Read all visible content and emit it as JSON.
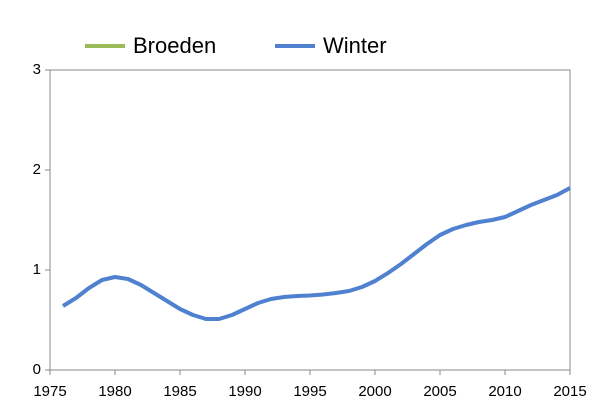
{
  "chart_data": {
    "type": "line",
    "x": [
      1976,
      1977,
      1978,
      1979,
      1980,
      1981,
      1982,
      1983,
      1984,
      1985,
      1986,
      1987,
      1988,
      1989,
      1990,
      1991,
      1992,
      1993,
      1994,
      1995,
      1996,
      1997,
      1998,
      1999,
      2000,
      2001,
      2002,
      2003,
      2004,
      2005,
      2006,
      2007,
      2008,
      2009,
      2010,
      2011,
      2012,
      2013,
      2014,
      2015
    ],
    "series": [
      {
        "name": "Broeden",
        "color": "#9bbb59",
        "values": [
          null,
          null,
          null,
          null,
          null,
          null,
          null,
          null,
          null,
          null,
          null,
          null,
          null,
          null,
          null,
          null,
          null,
          null,
          null,
          null,
          null,
          null,
          null,
          null,
          null,
          null,
          null,
          null,
          null,
          null,
          null,
          null,
          null,
          null,
          null,
          null,
          null,
          null,
          null,
          null
        ]
      },
      {
        "name": "Winter",
        "color": "#4f81d0",
        "values": [
          0.64,
          0.72,
          0.82,
          0.9,
          0.93,
          0.91,
          0.85,
          0.77,
          0.69,
          0.61,
          0.55,
          0.51,
          0.51,
          0.55,
          0.61,
          0.67,
          0.71,
          0.73,
          0.74,
          0.745,
          0.755,
          0.77,
          0.79,
          0.83,
          0.89,
          0.97,
          1.06,
          1.16,
          1.26,
          1.35,
          1.41,
          1.45,
          1.48,
          1.5,
          1.53,
          1.59,
          1.65,
          1.7,
          1.75,
          1.82
        ]
      }
    ],
    "xlim": [
      1975,
      2015
    ],
    "xticks": [
      1975,
      1980,
      1985,
      1990,
      1995,
      2000,
      2005,
      2010,
      2015
    ],
    "ylim": [
      0,
      3
    ],
    "yticks": [
      0,
      1,
      2,
      3
    ],
    "legend": "top"
  }
}
